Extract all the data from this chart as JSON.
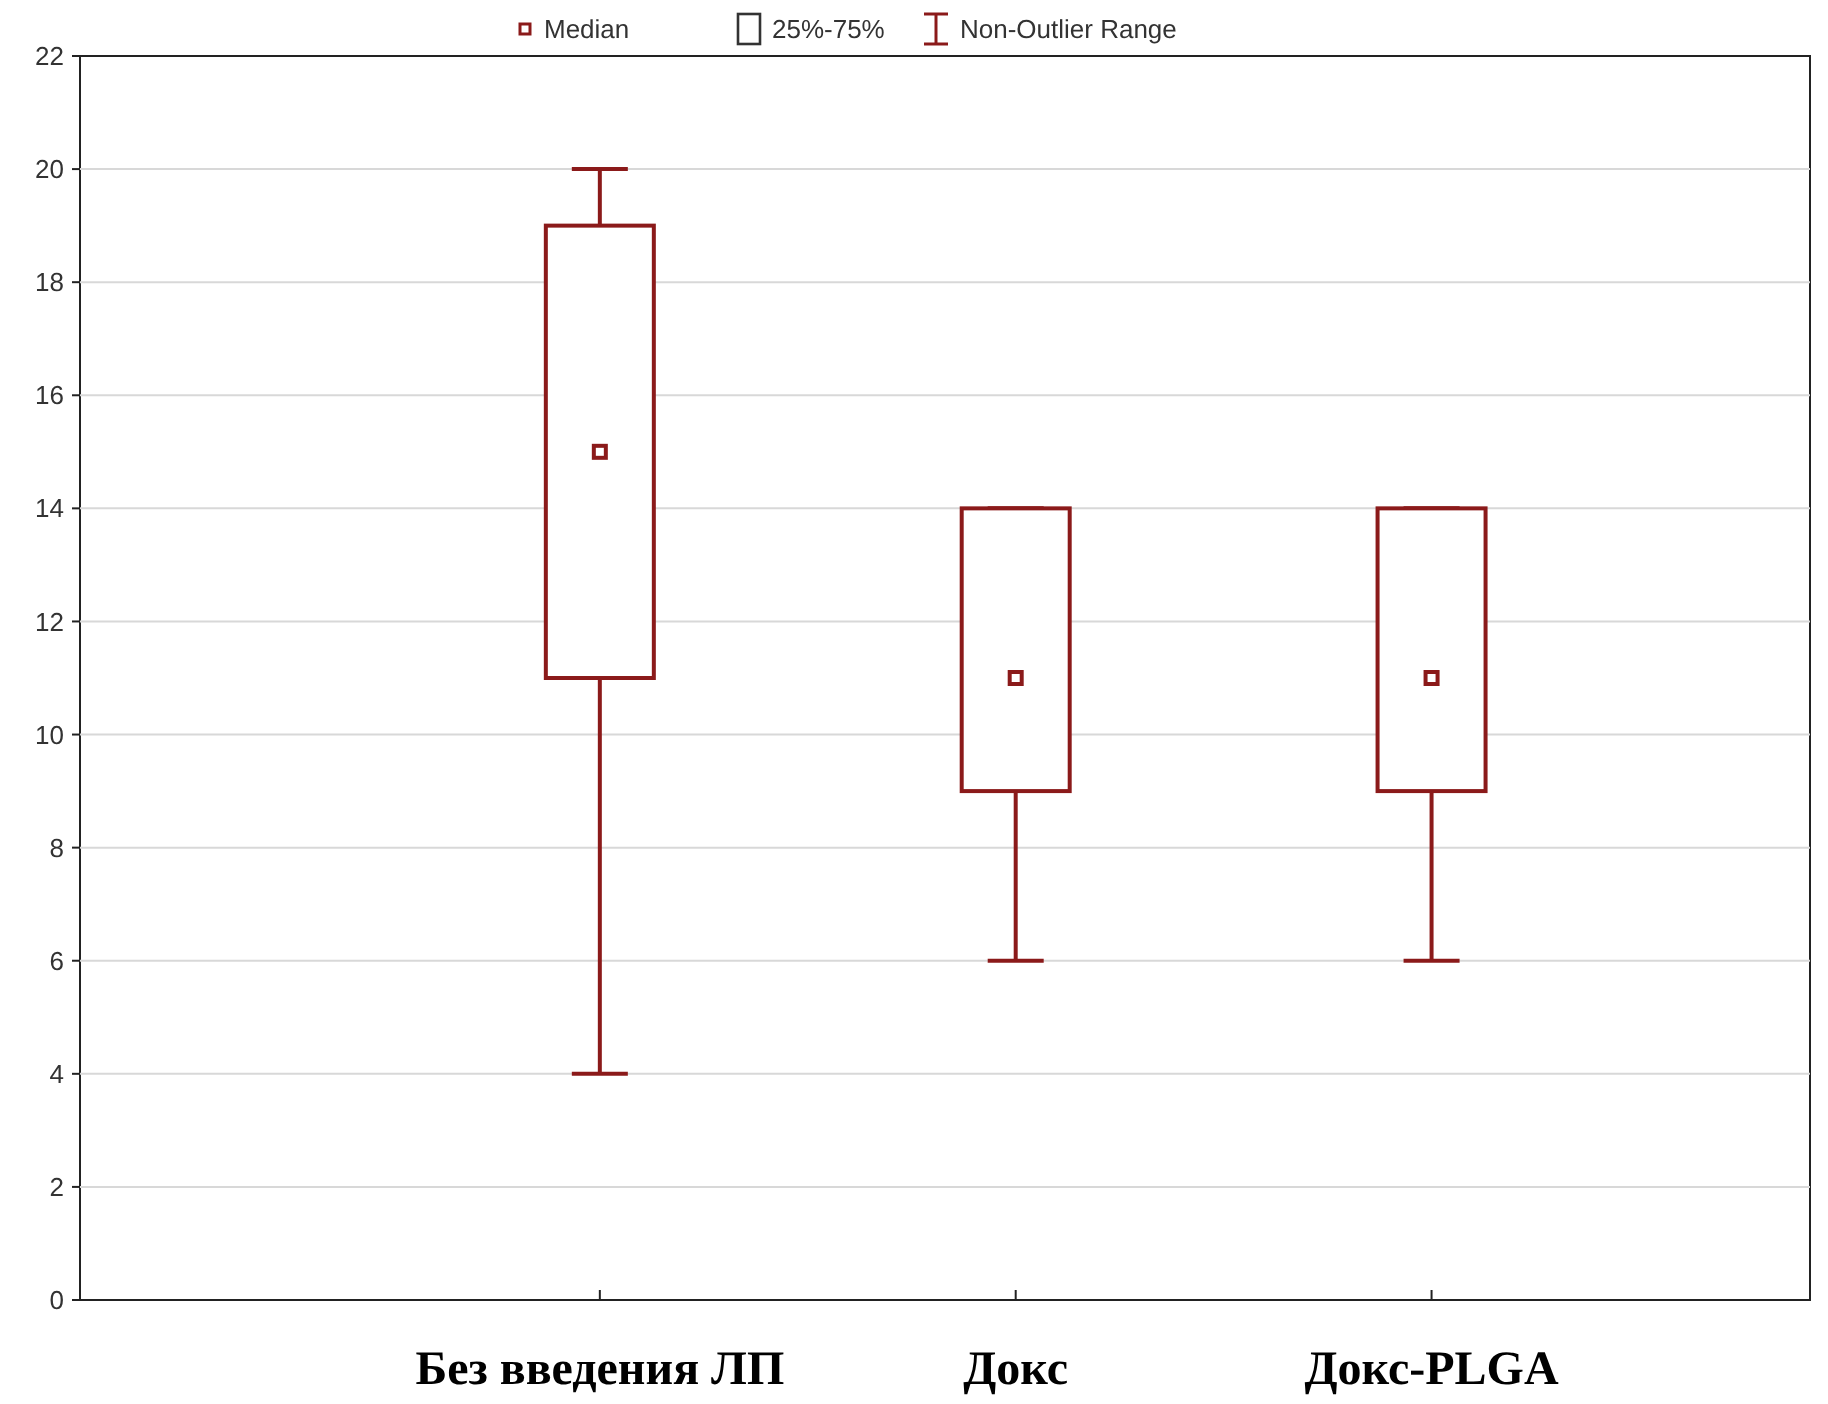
{
  "chart_data": {
    "type": "box",
    "categories": [
      "Без введения ЛП",
      "Докс",
      "Докс-PLGA"
    ],
    "boxes": [
      {
        "low": 4,
        "q1": 11,
        "median": 15,
        "q3": 19,
        "high": 20
      },
      {
        "low": 6,
        "q1": 9,
        "median": 11,
        "q3": 14,
        "high": 14
      },
      {
        "low": 6,
        "q1": 9,
        "median": 11,
        "q3": 14,
        "high": 14
      }
    ],
    "color": "#8b1a1a",
    "ylim": [
      0,
      22
    ],
    "yticks": [
      0,
      2,
      4,
      6,
      8,
      10,
      12,
      14,
      16,
      18,
      20,
      22
    ],
    "grid": "y",
    "annotations": [
      "Median",
      "25%-75%",
      "Non-Outlier Range"
    ]
  }
}
